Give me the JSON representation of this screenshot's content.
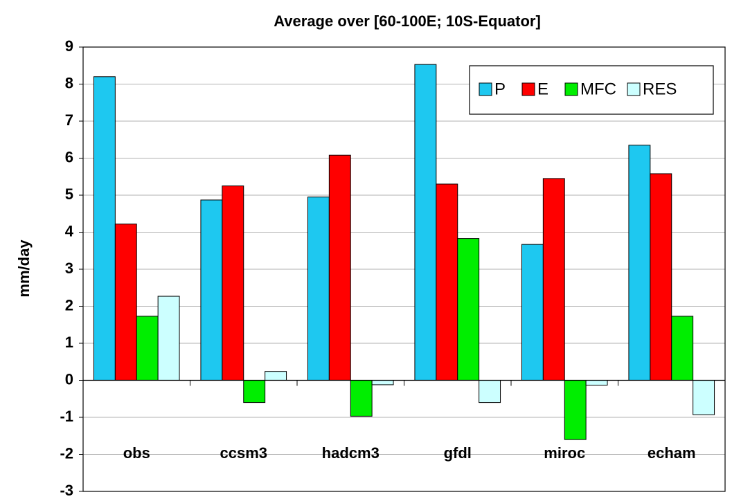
{
  "chart_data": {
    "type": "bar",
    "title": "Average over [60-100E; 10S-Equator]",
    "y_label": "mm/day",
    "categories": [
      "obs",
      "ccsm3",
      "hadcm3",
      "gfdl",
      "miroc",
      "echam"
    ],
    "series": [
      {
        "name": "P",
        "color": "#1ec8f0",
        "values": [
          8.2,
          4.87,
          4.95,
          8.53,
          3.67,
          6.35
        ]
      },
      {
        "name": "E",
        "color": "#ff0000",
        "values": [
          4.22,
          5.25,
          6.08,
          5.3,
          5.45,
          5.58
        ]
      },
      {
        "name": "MFC",
        "color": "#00ee00",
        "values": [
          1.73,
          -0.6,
          -0.97,
          3.83,
          -1.6,
          1.73
        ]
      },
      {
        "name": "RES",
        "color": "#ccffff",
        "values": [
          2.27,
          0.24,
          -0.12,
          -0.6,
          -0.13,
          -0.93
        ]
      }
    ],
    "ylim": [
      -3,
      9
    ],
    "yticks": [
      -3,
      -2,
      -1,
      0,
      1,
      2,
      3,
      4,
      5,
      6,
      7,
      8,
      9
    ],
    "grid": true,
    "legend": "upper right"
  }
}
